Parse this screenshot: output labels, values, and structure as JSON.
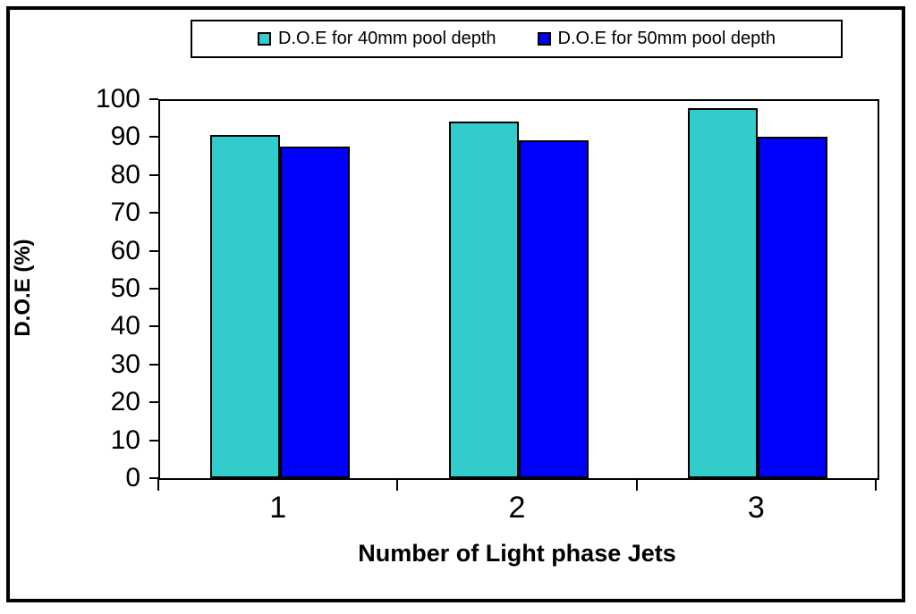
{
  "chart_data": {
    "type": "bar",
    "categories": [
      "1",
      "2",
      "3"
    ],
    "series": [
      {
        "name": "D.O.E for 40mm pool depth",
        "color": "#33CCCC",
        "values": [
          91,
          94.5,
          98
        ]
      },
      {
        "name": "D.O.E for 50mm pool depth",
        "color": "#0000FF",
        "values": [
          88,
          89.5,
          90.5
        ]
      }
    ],
    "xlabel": "Number of Light phase Jets",
    "ylabel": "D.O.E (%)",
    "ylim": [
      0,
      100
    ],
    "yticks": [
      0,
      10,
      20,
      30,
      40,
      50,
      60,
      70,
      80,
      90,
      100
    ],
    "legend_position": "top-center",
    "grid": false,
    "plot_background": "#FFFFFF",
    "border_color": "#000000"
  }
}
